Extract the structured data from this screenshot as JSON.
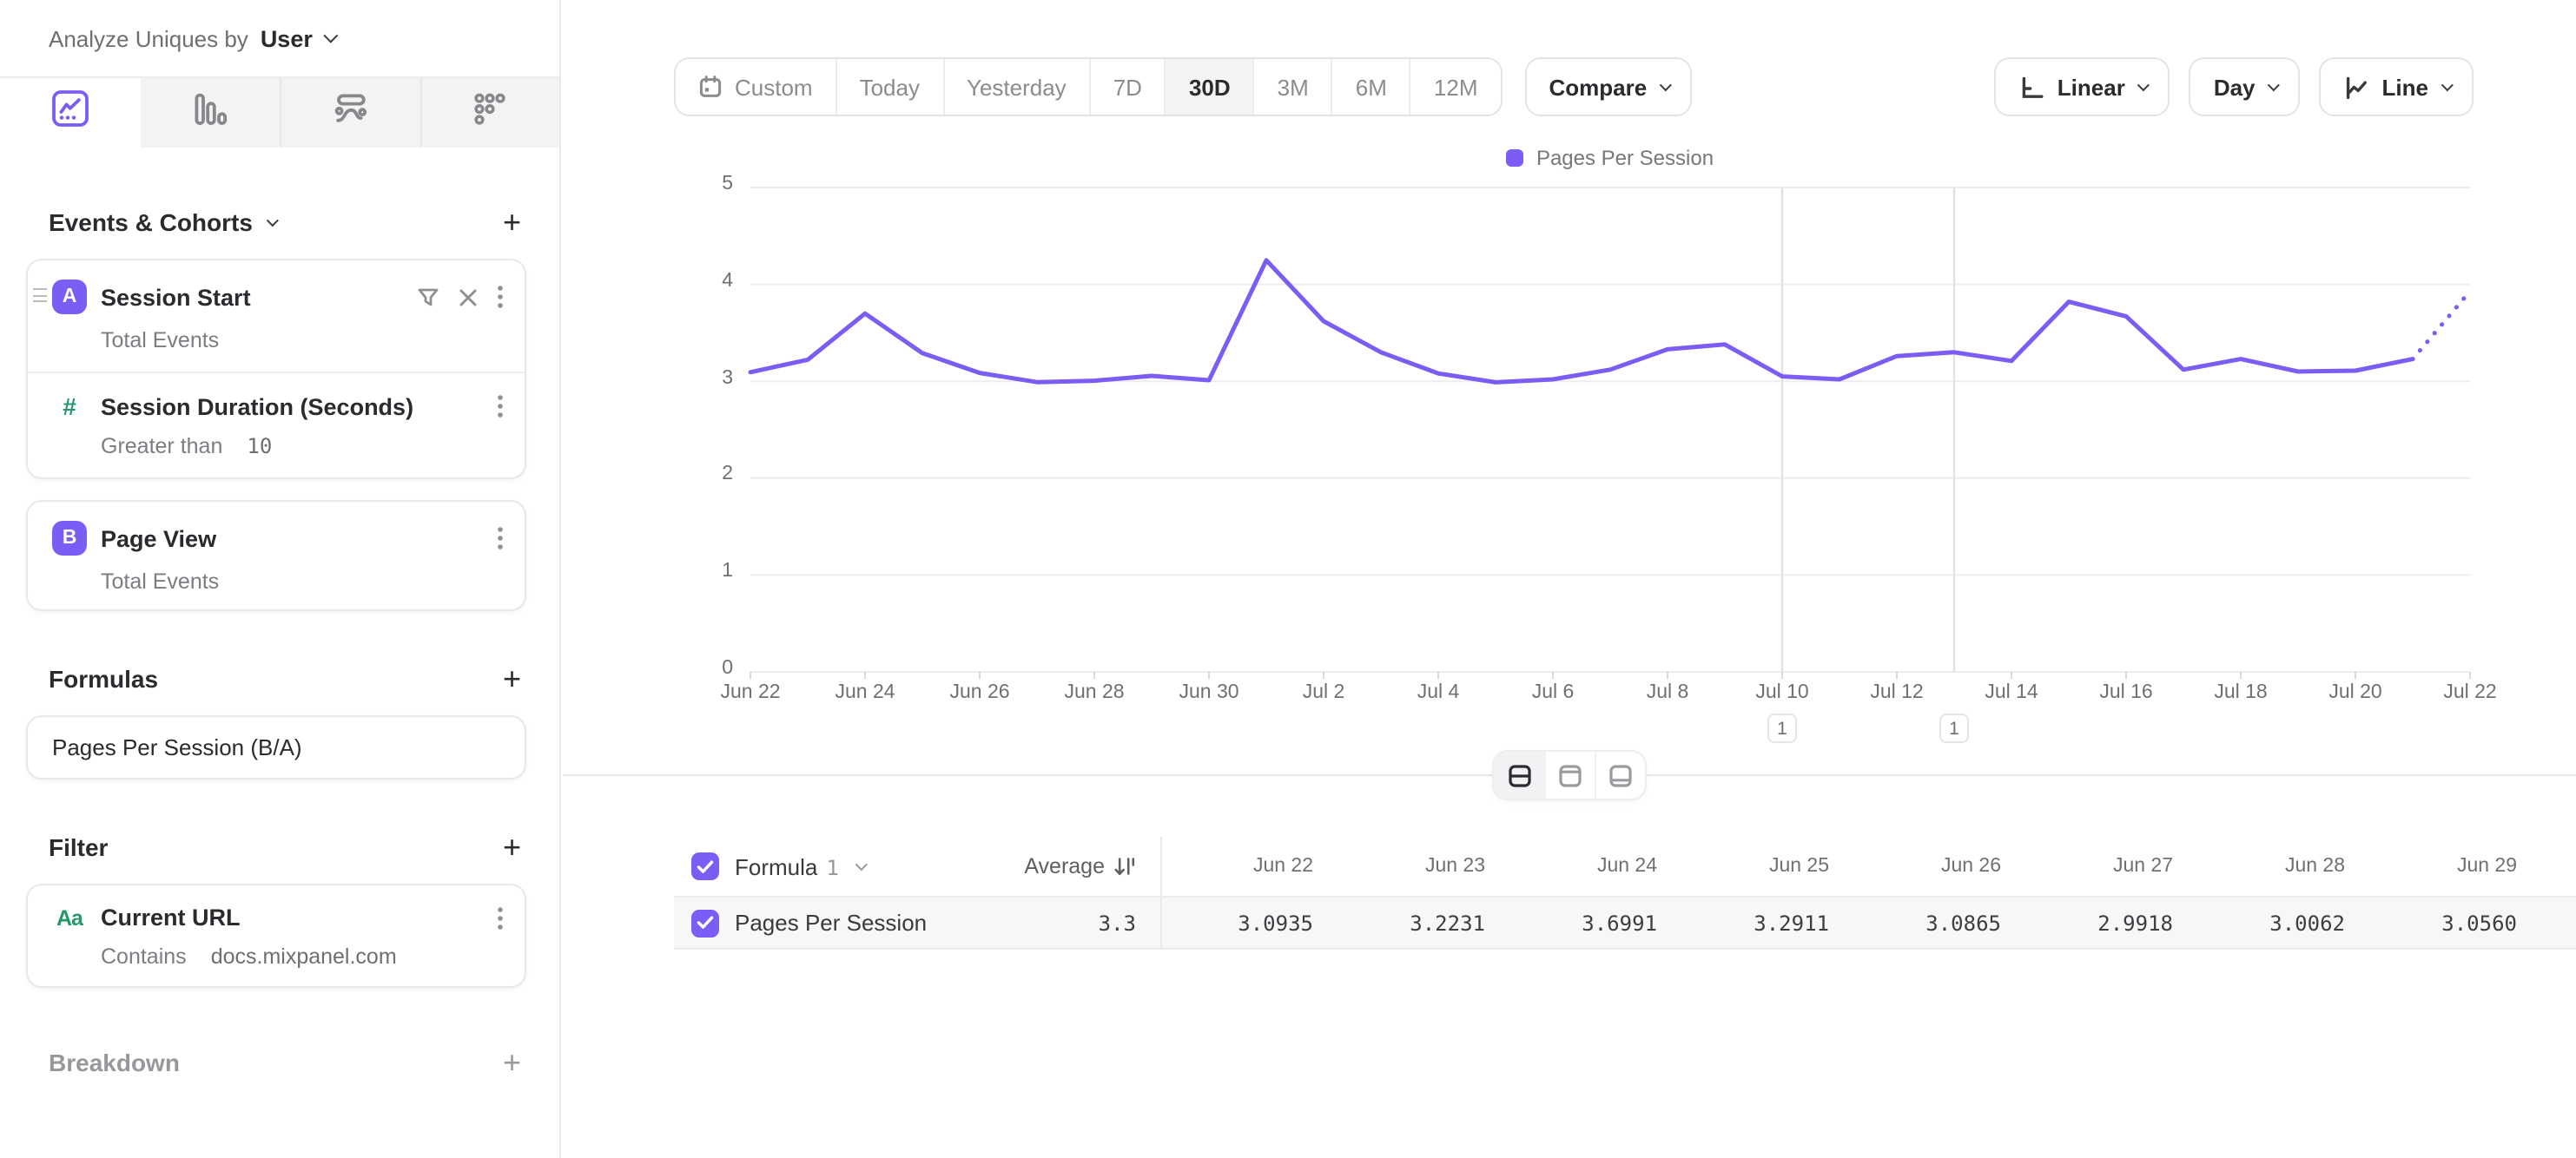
{
  "colors": {
    "accent": "#7b5cf5",
    "green": "#219969"
  },
  "header": {
    "analyze_label": "Analyze Uniques by",
    "analyze_value": "User"
  },
  "sidebar": {
    "tabs": [
      {
        "name": "insights",
        "active": true
      },
      {
        "name": "bar-funnels",
        "active": false
      },
      {
        "name": "flows",
        "active": false
      },
      {
        "name": "retention",
        "active": false
      }
    ],
    "sections": {
      "events": {
        "title": "Events & Cohorts",
        "add_label": "+"
      },
      "formulas": {
        "title": "Formulas",
        "add_label": "+"
      },
      "filter": {
        "title": "Filter",
        "add_label": "+"
      },
      "breakdown": {
        "title": "Breakdown",
        "add_label": "+"
      }
    },
    "events": [
      {
        "badge": "A",
        "title": "Session Start",
        "subtitle": "Total Events",
        "property_filter": {
          "title": "Session Duration (Seconds)",
          "operator": "Greater than",
          "value": "10"
        }
      },
      {
        "badge": "B",
        "title": "Page View",
        "subtitle": "Total Events"
      }
    ],
    "formulas": [
      {
        "label": "Pages Per Session (B/A)"
      }
    ],
    "filters": [
      {
        "icon": "Aa",
        "title": "Current URL",
        "operator": "Contains",
        "value": "docs.mixpanel.com"
      }
    ]
  },
  "toolbar": {
    "ranges": [
      "Custom",
      "Today",
      "Yesterday",
      "7D",
      "30D",
      "3M",
      "6M",
      "12M"
    ],
    "active_range": "30D",
    "compare_label": "Compare",
    "scale_label": "Linear",
    "interval_label": "Day",
    "chart_type_label": "Line"
  },
  "chart_data": {
    "type": "line",
    "legend": {
      "position": "top-center",
      "entries": [
        "Pages Per Session"
      ]
    },
    "x": [
      "Jun 22",
      "Jun 23",
      "Jun 24",
      "Jun 25",
      "Jun 26",
      "Jun 27",
      "Jun 28",
      "Jun 29",
      "Jun 30",
      "Jul 1",
      "Jul 2",
      "Jul 3",
      "Jul 4",
      "Jul 5",
      "Jul 6",
      "Jul 7",
      "Jul 8",
      "Jul 9",
      "Jul 10",
      "Jul 11",
      "Jul 12",
      "Jul 13",
      "Jul 14",
      "Jul 15",
      "Jul 16",
      "Jul 17",
      "Jul 18",
      "Jul 19",
      "Jul 20",
      "Jul 21",
      "Jul 22"
    ],
    "series": [
      {
        "name": "Pages Per Session",
        "color": "#7b5cf5",
        "values": [
          3.0935,
          3.2231,
          3.6991,
          3.2911,
          3.0865,
          2.9918,
          3.0062,
          3.056,
          3.01,
          4.25,
          3.62,
          3.3,
          3.08,
          2.99,
          3.02,
          3.12,
          3.33,
          3.38,
          3.05,
          3.02,
          3.26,
          3.3,
          3.21,
          3.82,
          3.67,
          3.12,
          3.23,
          3.1,
          3.11,
          3.23,
          3.93
        ],
        "dotted_tail_segments": 1
      }
    ],
    "x_tick_labels": [
      "Jun 22",
      "Jun 24",
      "Jun 26",
      "Jun 28",
      "Jun 30",
      "Jul 2",
      "Jul 4",
      "Jul 6",
      "Jul 8",
      "Jul 10",
      "Jul 12",
      "Jul 14",
      "Jul 16",
      "Jul 18",
      "Jul 20",
      "Jul 22"
    ],
    "x_tick_step": 2,
    "y_ticks": [
      0,
      1,
      2,
      3,
      4,
      5
    ],
    "ylim": [
      0,
      5
    ],
    "grid": "horizontal",
    "annotations": [
      {
        "x_index": 18,
        "date": "Jul 10",
        "label": "1"
      },
      {
        "x_index": 21,
        "date": "Jul 13",
        "label": "1"
      }
    ]
  },
  "layout_toggle": {
    "options": [
      "split-view",
      "chart-view",
      "table-view"
    ],
    "active": "split-view"
  },
  "table": {
    "series_group_label": "Formula",
    "series_group_number": "1",
    "average_label": "Average",
    "columns": [
      "Jun 22",
      "Jun 23",
      "Jun 24",
      "Jun 25",
      "Jun 26",
      "Jun 27",
      "Jun 28",
      "Jun 29"
    ],
    "rows": [
      {
        "label": "Pages Per Session",
        "checked": true,
        "average": "3.3",
        "values": [
          "3.0935",
          "3.2231",
          "3.6991",
          "3.2911",
          "3.0865",
          "2.9918",
          "3.0062",
          "3.0560"
        ]
      }
    ]
  }
}
